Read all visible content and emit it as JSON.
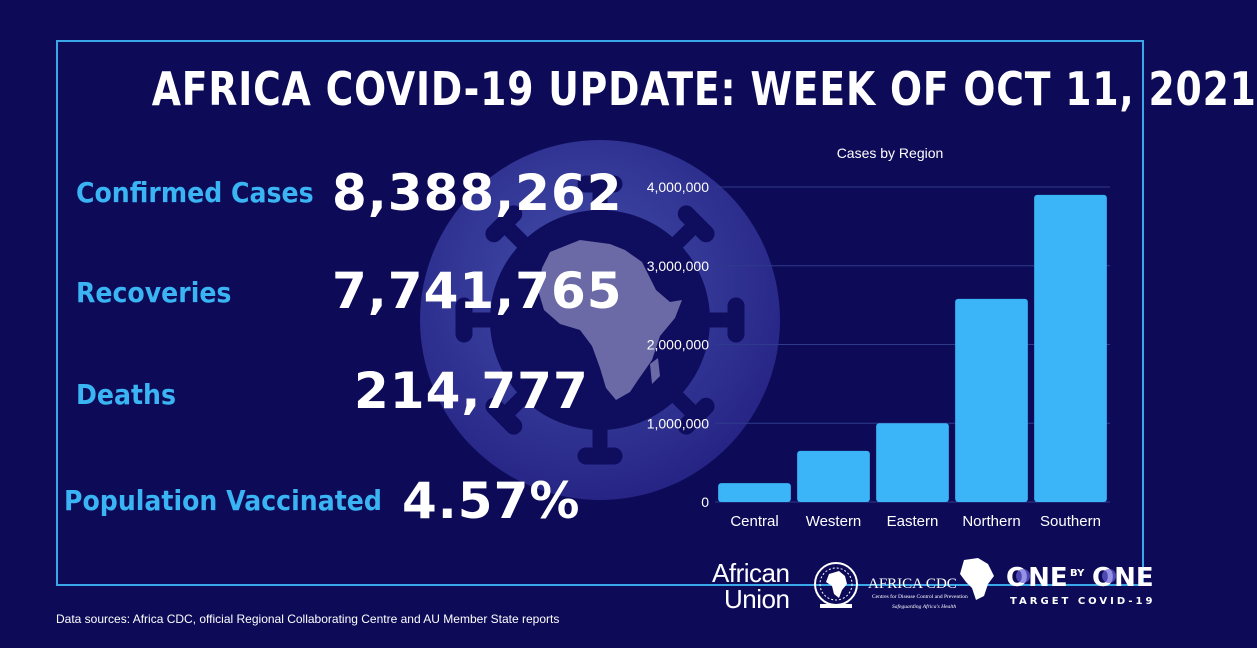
{
  "title": "AFRICA COVID-19 UPDATE: WEEK OF OCT 11, 2021",
  "stats": [
    {
      "label": "Confirmed Cases",
      "value": "8,388,262"
    },
    {
      "label": "Recoveries",
      "value": "7,741,765"
    },
    {
      "label": "Deaths",
      "value": "214,777"
    },
    {
      "label": "Population Vaccinated",
      "value": "4.57%"
    }
  ],
  "colors": {
    "background": "#0d0a58",
    "frame": "#3aa7e8",
    "label": "#3ab4f2",
    "bar": "#3bb5f7",
    "value": "#ffffff"
  },
  "chart_data": {
    "type": "bar",
    "title": "Cases by Region",
    "categories": [
      "Central",
      "Western",
      "Eastern",
      "Northern",
      "Southern"
    ],
    "values": [
      240000,
      650000,
      1000000,
      2580000,
      3900000
    ],
    "yticks": [
      "0",
      "1,000,000",
      "2,000,000",
      "3,000,000",
      "4,000,000"
    ],
    "ylim": [
      0,
      4000000
    ],
    "grid": true,
    "legend": "none"
  },
  "logos": {
    "african_union": [
      "African",
      "Union"
    ],
    "africa_cdc": {
      "name": "AFRICA CDC",
      "subtitle": "Centres for Disease Control and Prevention",
      "tagline": "Safeguarding Africa's Health"
    },
    "one_by_one": {
      "one_left": "ONE",
      "by": "BY",
      "one_right": "ONE",
      "tagline": "TARGET COVID-19"
    }
  },
  "footer": "Data sources: Africa CDC, official Regional Collaborating Centre and AU Member State reports"
}
